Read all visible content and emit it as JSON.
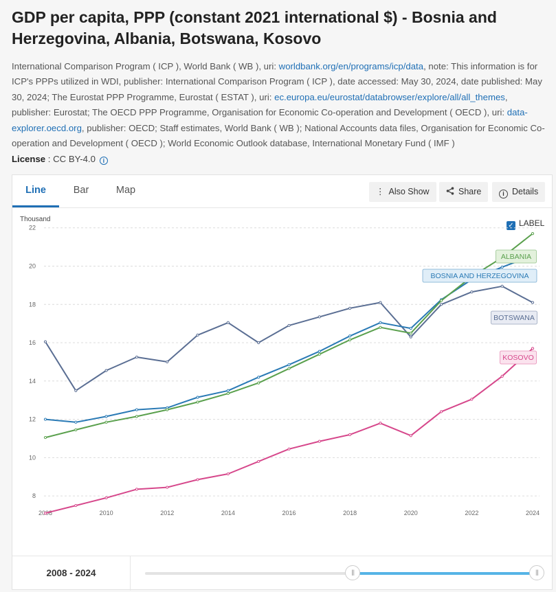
{
  "title": "GDP per capita, PPP (constant 2021 international $) - Bosnia and Herzegovina, Albania, Botswana, Kosovo",
  "source": {
    "p1": "International Comparison Program ( ICP ), World Bank ( WB ), uri: ",
    "link1": "worldbank.org/en/programs/icp/data",
    "p2": ", note: This information is for ICP's PPPs utilized in WDI, publisher: International Comparison Program ( ICP ), date accessed: May 30, 2024, date published: May 30, 2024; The Eurostat PPP Programme, Eurostat ( ESTAT ), uri: ",
    "link2": "ec.europa.eu/eurostat/databrowser/explore/all/all_themes",
    "p3": ", publisher: Eurostat; The OECD PPP Programme, Organisation for Economic Co-operation and Development ( OECD ), uri: ",
    "link3": "data-explorer.oecd.org",
    "p4": ", publisher: OECD; Staff estimates, World Bank ( WB ); National Accounts data files, Organisation for Economic Co-operation and Development ( OECD ); World Economic Outlook database, International Monetary Fund ( IMF )"
  },
  "license": {
    "label": "License",
    "value": " : CC BY-4.0"
  },
  "tabs": [
    {
      "label": "Line",
      "active": true
    },
    {
      "label": "Bar",
      "active": false
    },
    {
      "label": "Map",
      "active": false
    }
  ],
  "toolbar": {
    "also_show": "Also Show",
    "share": "Share",
    "details": "Details"
  },
  "label_toggle": "LABEL",
  "range_label": "2008 - 2024",
  "slider": {
    "start_fraction": 0.53,
    "end_fraction": 1.0
  },
  "chart_data": {
    "type": "line",
    "ylabel": "Thousand",
    "ylim": [
      7,
      22.6
    ],
    "xlim": [
      2008,
      2024
    ],
    "y_ticks": [
      8,
      10,
      12,
      14,
      16,
      18,
      20,
      22
    ],
    "x_ticks": [
      2008,
      2010,
      2012,
      2014,
      2016,
      2018,
      2020,
      2022,
      2024
    ],
    "grid": true,
    "x": [
      2008,
      2009,
      2010,
      2011,
      2012,
      2013,
      2014,
      2015,
      2016,
      2017,
      2018,
      2019,
      2020,
      2021,
      2022,
      2023,
      2024
    ],
    "series": [
      {
        "name": "BOTSWANA",
        "color": "#5a6e93",
        "label_bg": "#e8ebf3",
        "values": [
          16.05,
          13.5,
          14.55,
          15.25,
          15.0,
          16.4,
          17.05,
          16.0,
          16.9,
          17.35,
          17.8,
          18.1,
          16.3,
          18.0,
          18.65,
          18.95,
          18.1
        ]
      },
      {
        "name": "BOSNIA AND HERZEGOVINA",
        "color": "#2a7ab5",
        "label_bg": "#e0eef8",
        "values": [
          12.0,
          11.85,
          12.15,
          12.5,
          12.6,
          13.15,
          13.5,
          14.2,
          14.85,
          15.55,
          16.35,
          17.05,
          16.75,
          18.25,
          19.3,
          19.95,
          20.55
        ]
      },
      {
        "name": "ALBANIA",
        "color": "#5aa04d",
        "label_bg": "#e3f1dc",
        "values": [
          11.05,
          11.45,
          11.85,
          12.15,
          12.5,
          12.9,
          13.35,
          13.9,
          14.65,
          15.4,
          16.15,
          16.8,
          16.5,
          18.2,
          19.45,
          20.45,
          21.7
        ]
      },
      {
        "name": "KOSOVO",
        "color": "#d6478b",
        "label_bg": "#fbe3ee",
        "values": [
          7.1,
          7.5,
          7.9,
          8.35,
          8.45,
          8.85,
          9.15,
          9.8,
          10.45,
          10.85,
          11.2,
          11.8,
          11.15,
          12.4,
          13.05,
          14.25,
          15.7
        ]
      }
    ]
  }
}
